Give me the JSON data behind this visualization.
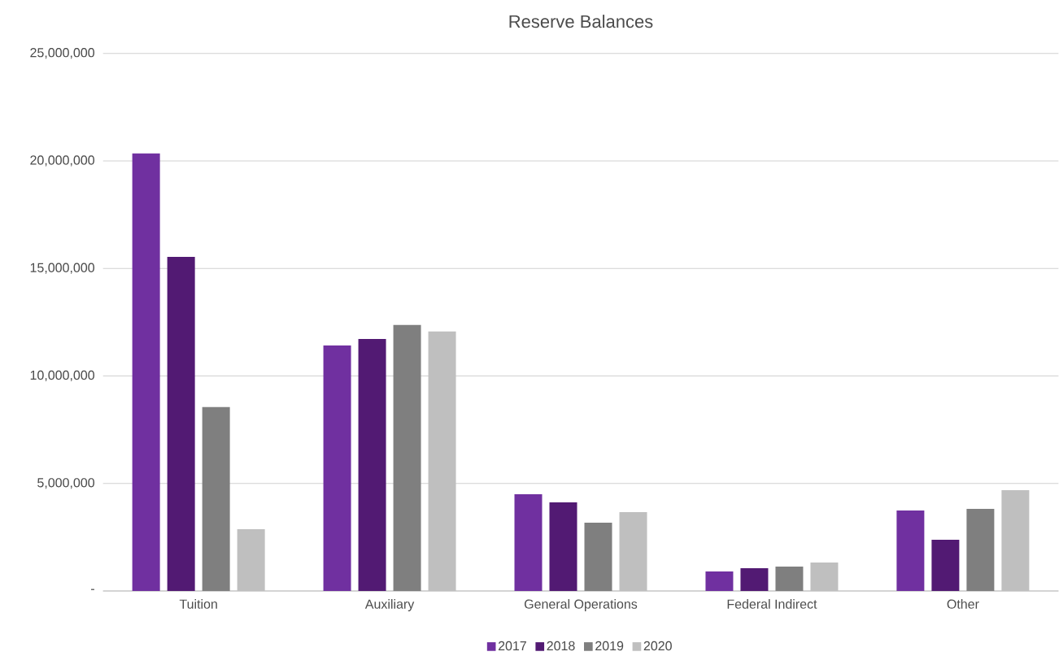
{
  "chart_data": {
    "type": "bar",
    "title": "Reserve Balances",
    "categories": [
      "Tuition",
      "Auxiliary",
      "General Operations",
      "Federal Indirect",
      "Other"
    ],
    "series": [
      {
        "name": "2017",
        "color": "#7030a0",
        "values": [
          20350000,
          11420000,
          4500000,
          910000,
          3740000
        ]
      },
      {
        "name": "2018",
        "color": "#521a73",
        "values": [
          15540000,
          11720000,
          4120000,
          1060000,
          2380000
        ]
      },
      {
        "name": "2019",
        "color": "#7f7f7f",
        "values": [
          8550000,
          12370000,
          3180000,
          1130000,
          3820000
        ]
      },
      {
        "name": "2020",
        "color": "#bfbfbf",
        "values": [
          2870000,
          12070000,
          3670000,
          1320000,
          4690000
        ]
      }
    ],
    "ylim": [
      0,
      25000000
    ],
    "yticks": [
      {
        "value": 0,
        "label": "-"
      },
      {
        "value": 5000000,
        "label": "5,000,000"
      },
      {
        "value": 10000000,
        "label": "10,000,000"
      },
      {
        "value": 15000000,
        "label": "15,000,000"
      },
      {
        "value": 20000000,
        "label": "20,000,000"
      },
      {
        "value": 25000000,
        "label": "25,000,000"
      }
    ],
    "grid": "y",
    "legend": "bottom"
  }
}
